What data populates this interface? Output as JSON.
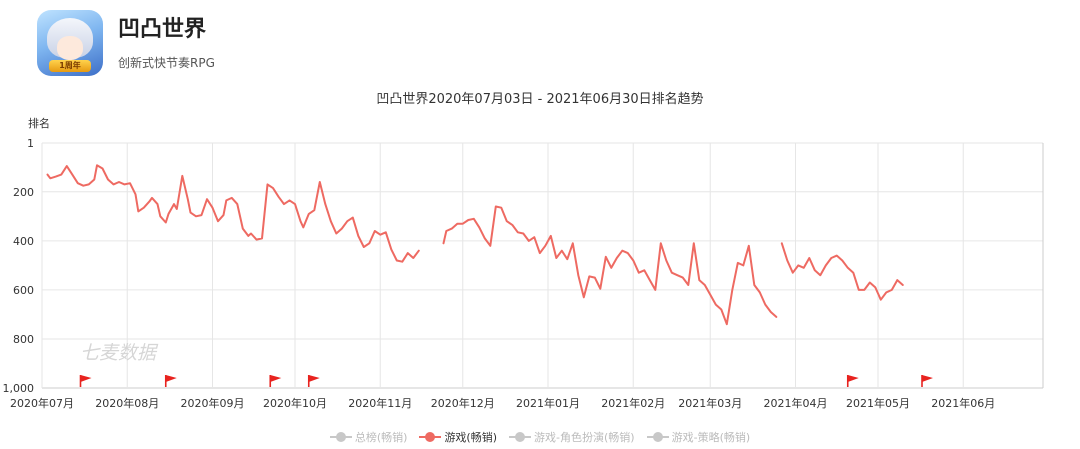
{
  "app": {
    "name": "凹凸世界",
    "subtitle": "创新式快节奏RPG",
    "icon": "anime-character-app-icon",
    "icon_badge": "1周年"
  },
  "colors": {
    "series": "#ee6a62",
    "inactive": "#c8c8c8",
    "grid": "#e6e6e6",
    "flag": "#e8231f"
  },
  "chart_data": {
    "type": "line",
    "title": "凹凸世界2020年07月03日 - 2021年06月30日排名趋势",
    "ylabel": "排名",
    "y_inverted": true,
    "ylim": [
      1,
      1000
    ],
    "yticks": [
      1,
      200,
      400,
      600,
      800,
      1000
    ],
    "ytick_labels": [
      "1",
      "200",
      "400",
      "600",
      "800",
      "1,000"
    ],
    "xlim": [
      "2020-07-01",
      "2021-06-30"
    ],
    "xticks": [
      "2020-07-01",
      "2020-08-01",
      "2020-09-01",
      "2020-10-01",
      "2020-11-01",
      "2020-12-01",
      "2021-01-01",
      "2021-02-01",
      "2021-03-01",
      "2021-04-01",
      "2021-05-01",
      "2021-06-01"
    ],
    "xtick_labels": [
      "2020年07月",
      "2020年08月",
      "2020年09月",
      "2020年10月",
      "2020年11月",
      "2020年12月",
      "2021年01月",
      "2021年02月",
      "2021年03月",
      "2021年04月",
      "2021年05月",
      "2021年06月"
    ],
    "grid": true,
    "legend_position": "bottom",
    "watermark": "七麦数据",
    "flags": [
      "2020-07-15",
      "2020-08-15",
      "2020-09-22",
      "2020-10-06",
      "2021-04-20",
      "2021-05-17"
    ],
    "legend": [
      {
        "name": "总榜(畅销)",
        "active": false
      },
      {
        "name": "游戏(畅销)",
        "active": true
      },
      {
        "name": "游戏-角色扮演(畅销)",
        "active": false
      },
      {
        "name": "游戏-策略(畅销)",
        "active": false
      }
    ],
    "series": [
      {
        "name": "游戏(畅销)",
        "segments": [
          [
            [
              "2020-07-03",
              130
            ],
            [
              "2020-07-04",
              145
            ],
            [
              "2020-07-06",
              138
            ],
            [
              "2020-07-08",
              130
            ],
            [
              "2020-07-10",
              95
            ],
            [
              "2020-07-12",
              130
            ],
            [
              "2020-07-14",
              165
            ],
            [
              "2020-07-16",
              175
            ],
            [
              "2020-07-18",
              170
            ],
            [
              "2020-07-20",
              150
            ],
            [
              "2020-07-21",
              92
            ],
            [
              "2020-07-23",
              105
            ],
            [
              "2020-07-25",
              150
            ],
            [
              "2020-07-27",
              170
            ],
            [
              "2020-07-29",
              160
            ],
            [
              "2020-07-31",
              170
            ],
            [
              "2020-08-02",
              165
            ],
            [
              "2020-08-04",
              210
            ],
            [
              "2020-08-05",
              280
            ],
            [
              "2020-08-07",
              265
            ],
            [
              "2020-08-09",
              240
            ],
            [
              "2020-08-10",
              225
            ],
            [
              "2020-08-12",
              250
            ],
            [
              "2020-08-13",
              300
            ],
            [
              "2020-08-15",
              325
            ],
            [
              "2020-08-16",
              290
            ],
            [
              "2020-08-18",
              250
            ],
            [
              "2020-08-19",
              270
            ],
            [
              "2020-08-21",
              135
            ],
            [
              "2020-08-23",
              230
            ],
            [
              "2020-08-24",
              285
            ],
            [
              "2020-08-26",
              300
            ],
            [
              "2020-08-28",
              295
            ],
            [
              "2020-08-30",
              230
            ],
            [
              "2020-09-01",
              265
            ],
            [
              "2020-09-03",
              320
            ],
            [
              "2020-09-05",
              295
            ],
            [
              "2020-09-06",
              235
            ],
            [
              "2020-09-08",
              225
            ],
            [
              "2020-09-10",
              250
            ],
            [
              "2020-09-12",
              350
            ],
            [
              "2020-09-14",
              380
            ],
            [
              "2020-09-15",
              370
            ],
            [
              "2020-09-17",
              395
            ],
            [
              "2020-09-19",
              390
            ],
            [
              "2020-09-21",
              170
            ],
            [
              "2020-09-23",
              185
            ],
            [
              "2020-09-25",
              220
            ],
            [
              "2020-09-27",
              250
            ],
            [
              "2020-09-29",
              235
            ],
            [
              "2020-10-01",
              250
            ],
            [
              "2020-10-03",
              320
            ],
            [
              "2020-10-04",
              345
            ],
            [
              "2020-10-06",
              290
            ],
            [
              "2020-10-08",
              275
            ],
            [
              "2020-10-10",
              160
            ],
            [
              "2020-10-12",
              250
            ],
            [
              "2020-10-14",
              320
            ],
            [
              "2020-10-16",
              370
            ],
            [
              "2020-10-18",
              350
            ],
            [
              "2020-10-20",
              320
            ],
            [
              "2020-10-22",
              305
            ],
            [
              "2020-10-24",
              380
            ],
            [
              "2020-10-26",
              425
            ],
            [
              "2020-10-28",
              410
            ],
            [
              "2020-10-30",
              360
            ],
            [
              "2020-11-01",
              375
            ],
            [
              "2020-11-03",
              365
            ],
            [
              "2020-11-05",
              435
            ],
            [
              "2020-11-07",
              480
            ],
            [
              "2020-11-09",
              485
            ],
            [
              "2020-11-11",
              450
            ],
            [
              "2020-11-13",
              470
            ],
            [
              "2020-11-15",
              440
            ]
          ],
          [
            [
              "2020-11-24",
              410
            ],
            [
              "2020-11-25",
              360
            ],
            [
              "2020-11-27",
              350
            ],
            [
              "2020-11-29",
              330
            ],
            [
              "2020-12-01",
              330
            ],
            [
              "2020-12-03",
              315
            ],
            [
              "2020-12-05",
              310
            ],
            [
              "2020-12-07",
              345
            ],
            [
              "2020-12-09",
              390
            ],
            [
              "2020-12-11",
              420
            ],
            [
              "2020-12-13",
              260
            ],
            [
              "2020-12-15",
              265
            ],
            [
              "2020-12-17",
              320
            ],
            [
              "2020-12-19",
              335
            ],
            [
              "2020-12-21",
              365
            ],
            [
              "2020-12-23",
              370
            ],
            [
              "2020-12-25",
              400
            ],
            [
              "2020-12-27",
              385
            ],
            [
              "2020-12-29",
              450
            ],
            [
              "2020-12-31",
              420
            ],
            [
              "2021-01-02",
              380
            ],
            [
              "2021-01-04",
              470
            ],
            [
              "2021-01-06",
              440
            ],
            [
              "2021-01-08",
              475
            ],
            [
              "2021-01-10",
              410
            ],
            [
              "2021-01-12",
              540
            ],
            [
              "2021-01-14",
              630
            ],
            [
              "2021-01-16",
              545
            ],
            [
              "2021-01-18",
              550
            ],
            [
              "2021-01-20",
              595
            ],
            [
              "2021-01-22",
              465
            ],
            [
              "2021-01-24",
              510
            ],
            [
              "2021-01-26",
              470
            ],
            [
              "2021-01-28",
              440
            ],
            [
              "2021-01-30",
              450
            ],
            [
              "2021-02-01",
              480
            ],
            [
              "2021-02-03",
              530
            ],
            [
              "2021-02-05",
              520
            ],
            [
              "2021-02-07",
              560
            ],
            [
              "2021-02-09",
              600
            ],
            [
              "2021-02-11",
              410
            ],
            [
              "2021-02-13",
              480
            ],
            [
              "2021-02-15",
              530
            ],
            [
              "2021-02-17",
              540
            ],
            [
              "2021-02-19",
              550
            ],
            [
              "2021-02-21",
              580
            ],
            [
              "2021-02-23",
              410
            ],
            [
              "2021-02-25",
              560
            ],
            [
              "2021-02-27",
              580
            ],
            [
              "2021-03-01",
              620
            ],
            [
              "2021-03-03",
              660
            ],
            [
              "2021-03-05",
              680
            ],
            [
              "2021-03-07",
              740
            ],
            [
              "2021-03-09",
              600
            ],
            [
              "2021-03-11",
              490
            ],
            [
              "2021-03-13",
              500
            ],
            [
              "2021-03-15",
              420
            ],
            [
              "2021-03-17",
              580
            ],
            [
              "2021-03-19",
              610
            ],
            [
              "2021-03-21",
              660
            ],
            [
              "2021-03-23",
              690
            ],
            [
              "2021-03-25",
              710
            ]
          ],
          [
            [
              "2021-03-27",
              410
            ],
            [
              "2021-03-29",
              480
            ],
            [
              "2021-03-31",
              530
            ],
            [
              "2021-04-02",
              500
            ],
            [
              "2021-04-04",
              510
            ],
            [
              "2021-04-06",
              470
            ],
            [
              "2021-04-08",
              520
            ],
            [
              "2021-04-10",
              540
            ],
            [
              "2021-04-12",
              500
            ],
            [
              "2021-04-14",
              470
            ],
            [
              "2021-04-16",
              460
            ],
            [
              "2021-04-18",
              480
            ],
            [
              "2021-04-20",
              510
            ],
            [
              "2021-04-22",
              530
            ],
            [
              "2021-04-24",
              600
            ],
            [
              "2021-04-26",
              600
            ],
            [
              "2021-04-28",
              570
            ],
            [
              "2021-04-30",
              590
            ],
            [
              "2021-05-02",
              640
            ],
            [
              "2021-05-04",
              610
            ],
            [
              "2021-05-06",
              600
            ],
            [
              "2021-05-08",
              560
            ],
            [
              "2021-05-10",
              580
            ]
          ]
        ]
      }
    ]
  }
}
